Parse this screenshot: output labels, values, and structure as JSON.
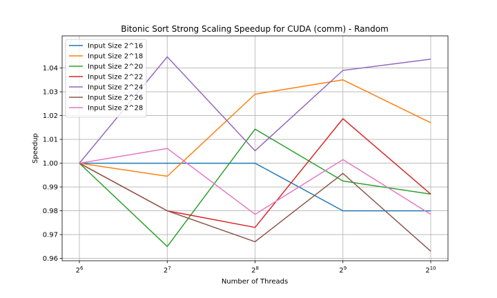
{
  "chart_data": {
    "type": "line",
    "title": "Bitonic Sort Strong Scaling Speedup for CUDA (comm) - Random",
    "xlabel": "Number of Threads",
    "ylabel": "Speedup",
    "x_exponents": [
      6,
      7,
      8,
      9,
      10
    ],
    "x_tick_base": "2",
    "x_scale": "log2",
    "ylim": [
      0.959,
      1.0535
    ],
    "y_ticks": [
      "0.96",
      "0.97",
      "0.98",
      "0.99",
      "1.00",
      "1.01",
      "1.02",
      "1.03",
      "1.04"
    ],
    "grid": true,
    "legend_position": "top-left",
    "series": [
      {
        "name": "Input Size 2^16",
        "color": "#1f77b4",
        "values": [
          1.0,
          1.0,
          1.0,
          0.98,
          0.98
        ]
      },
      {
        "name": "Input Size 2^18",
        "color": "#ff7f0e",
        "values": [
          1.0,
          0.9945,
          1.029,
          1.035,
          1.017
        ]
      },
      {
        "name": "Input Size 2^20",
        "color": "#2ca02c",
        "values": [
          1.0,
          0.965,
          1.0143,
          0.9925,
          0.987
        ]
      },
      {
        "name": "Input Size 2^22",
        "color": "#d62728",
        "values": [
          1.0,
          0.98,
          0.973,
          1.0187,
          0.987
        ]
      },
      {
        "name": "Input Size 2^24",
        "color": "#9467bd",
        "values": [
          1.0,
          1.0447,
          1.0052,
          1.039,
          1.0437
        ]
      },
      {
        "name": "Input Size 2^26",
        "color": "#8c564b",
        "values": [
          1.0,
          0.98,
          0.967,
          0.9957,
          0.963
        ]
      },
      {
        "name": "Input Size 2^28",
        "color": "#e377c2",
        "values": [
          1.0,
          1.0062,
          0.9785,
          1.0015,
          0.9785
        ]
      }
    ]
  }
}
